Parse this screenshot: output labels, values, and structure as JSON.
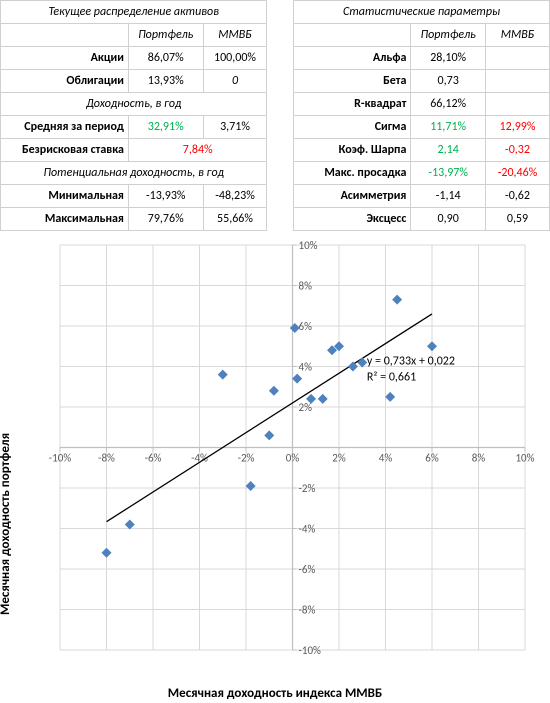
{
  "tables": {
    "left": {
      "title": "Текущее распределение активов",
      "col_portfolio": "Портфель",
      "col_index": "ММВБ",
      "rows": {
        "stocks_lab": "Акции",
        "stocks_p": "86,07%",
        "stocks_i": "100,00%",
        "bonds_lab": "Облигации",
        "bonds_p": "13,93%",
        "bonds_i": "0",
        "sec_return": "Доходность, в год",
        "avg_lab": "Средняя за период",
        "avg_p": "32,91%",
        "avg_i": "3,71%",
        "rf_lab": "Безрисковая ставка",
        "rf_val": "7,84%",
        "sec_pot": "Потенциальная доходность, в год",
        "min_lab": "Минимальная",
        "min_p": "-13,93%",
        "min_i": "-48,23%",
        "max_lab": "Максимальная",
        "max_p": "79,76%",
        "max_i": "55,66%"
      }
    },
    "right": {
      "title": "Статистические параметры",
      "col_portfolio": "Портфель",
      "col_index": "ММВБ",
      "rows": {
        "alpha_lab": "Альфа",
        "alpha_p": "28,10%",
        "alpha_i": "",
        "beta_lab": "Бета",
        "beta_p": "0,73",
        "beta_i": "",
        "r2_lab": "R-квадрат",
        "r2_p": "66,12%",
        "r2_i": "",
        "sigma_lab": "Сигма",
        "sigma_p": "11,71%",
        "sigma_i": "12,99%",
        "sharpe_lab": "Коэф. Шарпа",
        "sharpe_p": "2,14",
        "sharpe_i": "-0,32",
        "dd_lab": "Макс. просадка",
        "dd_p": "-13,97%",
        "dd_i": "-20,46%",
        "skew_lab": "Асимметрия",
        "skew_p": "-1,14",
        "skew_i": "-0,62",
        "kurt_lab": "Эксцесс",
        "kurt_p": "0,90",
        "kurt_i": "0,59"
      }
    }
  },
  "chart": {
    "type": "scatter",
    "x_label": "Месячная доходность индекса ММВБ",
    "y_label": "Месячная доходность портфеля",
    "xlim": [
      -10,
      10
    ],
    "ylim": [
      -10,
      10
    ],
    "tick_step": 2,
    "tick_format_suffix": "%",
    "background_color": "#ffffff",
    "grid_color": "#d9d9d9",
    "axis_color": "#bfbfbf",
    "marker_color": "#4f81bd",
    "marker_size": 10,
    "trend_color": "#000000",
    "trend_slope": 0.733,
    "trend_intercept": 2.2,
    "trend_x0": -8,
    "trend_x1": 6,
    "eq_line1": "y = 0,733x + 0,022",
    "eq_line2": "R² = 0,661",
    "eq_pos_x": 3.2,
    "eq_pos_y": 4.1,
    "points": [
      [
        -8.0,
        -5.2
      ],
      [
        -7.0,
        -3.8
      ],
      [
        -3.0,
        3.6
      ],
      [
        -1.8,
        -1.9
      ],
      [
        -1.0,
        0.6
      ],
      [
        -0.8,
        2.8
      ],
      [
        0.1,
        5.9
      ],
      [
        0.2,
        3.4
      ],
      [
        0.8,
        2.4
      ],
      [
        1.3,
        2.4
      ],
      [
        1.7,
        4.8
      ],
      [
        2.0,
        5.0
      ],
      [
        2.6,
        4.0
      ],
      [
        3.0,
        4.2
      ],
      [
        4.2,
        2.5
      ],
      [
        4.5,
        7.3
      ],
      [
        6.0,
        5.0
      ]
    ],
    "label_fontsize": 13,
    "tick_fontsize": 11
  }
}
